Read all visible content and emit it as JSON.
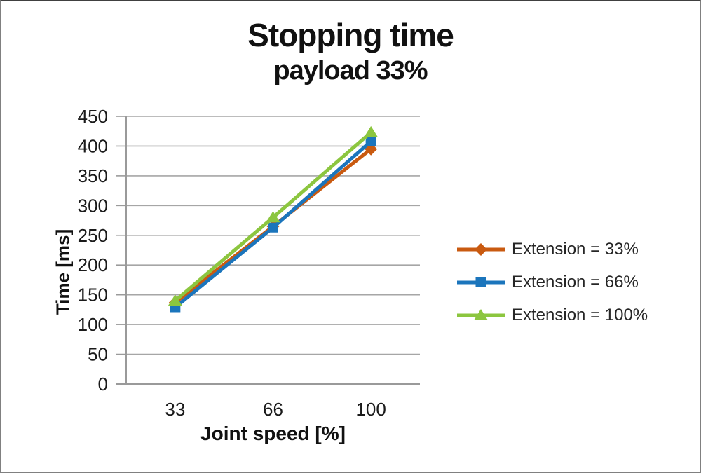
{
  "chart_data": {
    "type": "line",
    "title": "Stopping time",
    "subtitle": "payload 33%",
    "categories": [
      "33",
      "66",
      "100"
    ],
    "series": [
      {
        "name": "Extension = 33%",
        "marker": "diamond",
        "color": "#C95A10",
        "values": [
          137,
          265,
          395
        ]
      },
      {
        "name": "Extension = 66%",
        "marker": "square",
        "color": "#1B75BC",
        "values": [
          129,
          263,
          408
        ]
      },
      {
        "name": "Extension = 100%",
        "marker": "triangle",
        "color": "#8CC63F",
        "values": [
          140,
          280,
          423
        ]
      }
    ],
    "xlabel": "Joint speed [%]",
    "ylabel": "Time [ms]",
    "ylim": [
      0,
      450
    ],
    "ytick_step": 50,
    "yticks": [
      0,
      50,
      100,
      150,
      200,
      250,
      300,
      350,
      400,
      450
    ],
    "grid": true,
    "legend_position": "right"
  },
  "colors": {
    "background": "#FFFFFF",
    "border": "#808080",
    "grid": "#A6A6A6",
    "axis": "#9A9A9A",
    "text": "#1A1A1A"
  }
}
